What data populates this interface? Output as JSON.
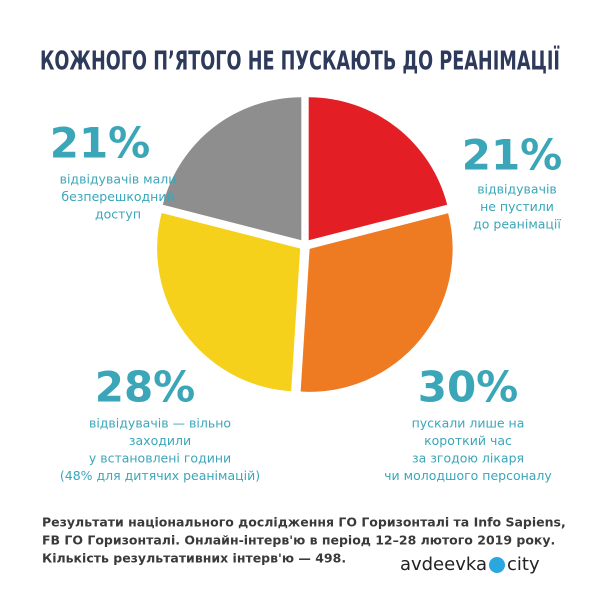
{
  "chart_data": {
    "type": "pie",
    "title": "КОЖНОГО П’ЯТОГО НЕ ПУСКАЮТЬ ДО РЕАНІМАЦІЇ",
    "categories": [
      [
        "відвідувачів",
        "не пустили",
        "до реанімації"
      ],
      [
        "пускали лише на",
        "короткий час",
        "за згодою лікаря",
        "чи молодшого персоналу"
      ],
      [
        "відвідувачів — вільно",
        "заходили",
        "у встановлені години",
        "(48% для дитячих реанімацій)"
      ],
      [
        "відвідувачів мали",
        "безперешкодний",
        "доступ"
      ]
    ],
    "values": [
      21,
      30,
      28,
      21
    ],
    "value_labels": [
      "21%",
      "30%",
      "28%",
      "21%"
    ],
    "colors": [
      "#e31e24",
      "#ee7a22",
      "#f6d11b",
      "#8e8e8e"
    ],
    "notes": [
      "Результати національного дослідження ГО Горизонталі та Info Sapiens,",
      "FB ГО Горизонталі. Онлайн-інтерв'ю в період 12–28 лютого 2019 року.",
      "Кількість результативних інтерв'ю — 498."
    ],
    "watermark": [
      "avdeevka",
      "city"
    ]
  }
}
